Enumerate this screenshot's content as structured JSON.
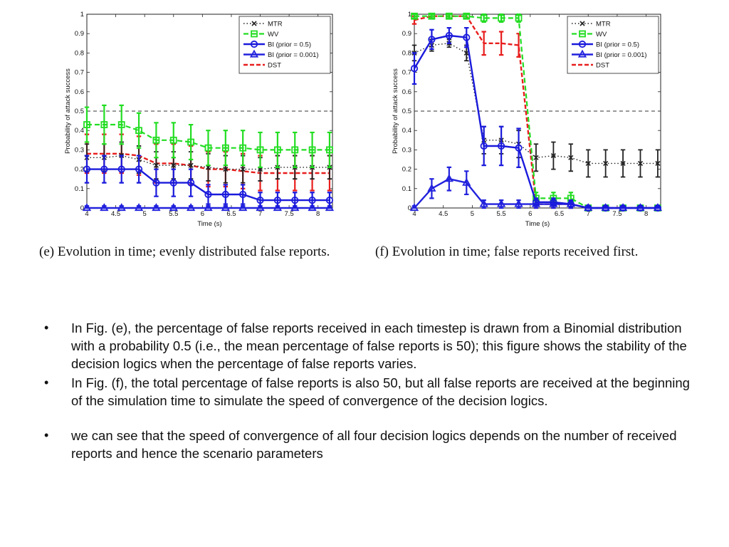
{
  "colors": {
    "MTR": "#222222",
    "WV": "#22dd22",
    "BI05": "#1a1adc",
    "BI0001": "#2222dd",
    "DST": "#e81e1e",
    "threshold": "#333333"
  },
  "captions": {
    "e": "(e) Evolution in time; evenly distributed false reports.",
    "f": "(f) Evolution in time; false reports received first."
  },
  "bullets": [
    "In Fig. (e), the percentage of false reports received in each timestep is drawn from a Binomial distribution with a probability 0.5 (i.e., the mean percentage of false reports is 50); this figure shows the stability of the decision logics when the percentage of false reports varies.",
    "In Fig. (f), the total percentage of false reports is also 50, but all false reports are received at the beginning of the simulation time to simulate the speed of convergence of the decision logics.",
    "we can see that the speed of convergence of all four decision logics depends on the number of received reports and hence the scenario parameters"
  ],
  "chart_data": [
    {
      "type": "line",
      "xlabel": "Time (s)",
      "ylabel": "Probability of attack success",
      "xlim": [
        4,
        8.25
      ],
      "ylim": [
        0,
        1
      ],
      "xticks": [
        "4",
        "4.5",
        "5",
        "5.5",
        "6",
        "6.5",
        "7",
        "7.5",
        "8"
      ],
      "yticks": [
        "0",
        "0.1",
        "0.2",
        "0.3",
        "0.4",
        "0.5",
        "0.6",
        "0.7",
        "0.8",
        "0.9",
        "1"
      ],
      "threshold": 0.5,
      "legend_position": "top-right",
      "legend": [
        "MTR",
        "WV",
        "BI (prior = 0.5)",
        "BI (prior = 0.001)",
        "DST"
      ],
      "x": [
        4,
        4.3,
        4.6,
        4.9,
        5.2,
        5.5,
        5.8,
        6.1,
        6.4,
        6.7,
        7,
        7.3,
        7.6,
        7.9,
        8.2
      ],
      "series": [
        {
          "name": "MTR",
          "values": [
            0.26,
            0.26,
            0.27,
            0.25,
            0.22,
            0.22,
            0.22,
            0.21,
            0.2,
            0.2,
            0.2,
            0.21,
            0.21,
            0.21,
            0.21
          ],
          "err": [
            0.07,
            0.07,
            0.07,
            0.07,
            0.07,
            0.07,
            0.07,
            0.07,
            0.07,
            0.07,
            0.06,
            0.06,
            0.06,
            0.06,
            0.06
          ],
          "err_every": 1
        },
        {
          "name": "WV",
          "values": [
            0.43,
            0.43,
            0.43,
            0.4,
            0.35,
            0.35,
            0.34,
            0.31,
            0.31,
            0.31,
            0.3,
            0.3,
            0.3,
            0.3,
            0.3
          ],
          "err": [
            0.09,
            0.1,
            0.1,
            0.09,
            0.09,
            0.09,
            0.09,
            0.09,
            0.09,
            0.09,
            0.09,
            0.09,
            0.09,
            0.09,
            0.09
          ],
          "err_every": 1
        },
        {
          "name": "BI (prior = 0.5)",
          "values": [
            0.2,
            0.2,
            0.2,
            0.2,
            0.13,
            0.13,
            0.13,
            0.07,
            0.07,
            0.07,
            0.04,
            0.04,
            0.04,
            0.04,
            0.04
          ],
          "err": [
            0.07,
            0.07,
            0.07,
            0.07,
            0.07,
            0.07,
            0.07,
            0.05,
            0.05,
            0.05,
            0.04,
            0.04,
            0.04,
            0.04,
            0.04
          ],
          "err_every": 1
        },
        {
          "name": "BI (prior = 0.001)",
          "values": [
            0.0,
            0.0,
            0.0,
            0.0,
            0.0,
            0.0,
            0.0,
            0.0,
            0.0,
            0.0,
            0.0,
            0.0,
            0.0,
            0.0,
            0.0
          ],
          "err": [
            0.01,
            0.01,
            0.01,
            0.01,
            0.01,
            0.01,
            0.01,
            0.01,
            0.01,
            0.01,
            0.01,
            0.01,
            0.01,
            0.01,
            0.01
          ],
          "err_every": 1
        },
        {
          "name": "DST",
          "values": [
            0.28,
            0.28,
            0.28,
            0.27,
            0.23,
            0.23,
            0.22,
            0.2,
            0.2,
            0.19,
            0.18,
            0.18,
            0.18,
            0.18,
            0.18
          ],
          "err": [
            0.1,
            0.1,
            0.1,
            0.1,
            0.1,
            0.1,
            0.1,
            0.09,
            0.09,
            0.09,
            0.09,
            0.09,
            0.09,
            0.09,
            0.09
          ],
          "err_every": 1
        }
      ]
    },
    {
      "type": "line",
      "xlabel": "Time (s)",
      "ylabel": "Probability of attack success",
      "xlim": [
        4,
        8.25
      ],
      "ylim": [
        0,
        1
      ],
      "xticks": [
        "4",
        "4.5",
        "5",
        "5.5",
        "6",
        "6.5",
        "7",
        "7.5",
        "8"
      ],
      "yticks": [
        "0",
        "0.1",
        "0.2",
        "0.3",
        "0.4",
        "0.5",
        "0.6",
        "0.7",
        "0.8",
        "0.9",
        "1"
      ],
      "threshold": 0.5,
      "legend_position": "top-right",
      "legend": [
        "MTR",
        "WV",
        "BI (prior = 0.5)",
        "BI (prior = 0.001)",
        "DST"
      ],
      "x": [
        4,
        4.3,
        4.6,
        4.9,
        5.2,
        5.5,
        5.8,
        6.1,
        6.4,
        6.7,
        7,
        7.3,
        7.6,
        7.9,
        8.2
      ],
      "series": [
        {
          "name": "MTR",
          "values": [
            0.8,
            0.84,
            0.85,
            0.8,
            0.35,
            0.35,
            0.33,
            0.26,
            0.27,
            0.26,
            0.23,
            0.23,
            0.23,
            0.23,
            0.23
          ],
          "err": [
            0.04,
            0.03,
            0.02,
            0.04,
            0.07,
            0.07,
            0.07,
            0.07,
            0.07,
            0.07,
            0.07,
            0.07,
            0.07,
            0.07,
            0.07
          ],
          "err_every": 1
        },
        {
          "name": "WV",
          "values": [
            0.99,
            0.99,
            0.99,
            0.99,
            0.98,
            0.98,
            0.98,
            0.05,
            0.05,
            0.05,
            0.0,
            0.0,
            0.0,
            0.0,
            0.0
          ],
          "err": [
            0.01,
            0.01,
            0.01,
            0.01,
            0.02,
            0.02,
            0.02,
            0.03,
            0.03,
            0.03,
            0.01,
            0.01,
            0.01,
            0.01,
            0.01
          ],
          "err_every": 1
        },
        {
          "name": "BI (prior = 0.5)",
          "values": [
            0.72,
            0.87,
            0.89,
            0.88,
            0.32,
            0.32,
            0.31,
            0.03,
            0.03,
            0.02,
            0.0,
            0.0,
            0.0,
            0.0,
            0.0
          ],
          "err": [
            0.08,
            0.05,
            0.04,
            0.05,
            0.1,
            0.1,
            0.1,
            0.02,
            0.02,
            0.02,
            0.01,
            0.01,
            0.01,
            0.01,
            0.01
          ],
          "err_every": 1
        },
        {
          "name": "BI (prior = 0.001)",
          "values": [
            0.0,
            0.1,
            0.15,
            0.13,
            0.02,
            0.02,
            0.02,
            0.02,
            0.02,
            0.02,
            0.0,
            0.0,
            0.0,
            0.0,
            0.0
          ],
          "err": [
            0.01,
            0.05,
            0.06,
            0.06,
            0.02,
            0.02,
            0.02,
            0.02,
            0.02,
            0.02,
            0.01,
            0.01,
            0.01,
            0.01,
            0.01
          ],
          "err_every": 1
        },
        {
          "name": "DST",
          "values": [
            0.97,
            0.99,
            0.99,
            0.99,
            0.85,
            0.85,
            0.84,
            0.02,
            0.02,
            0.02,
            0.0,
            0.0,
            0.0,
            0.0,
            0.0
          ],
          "err": [
            0.02,
            0.01,
            0.01,
            0.01,
            0.06,
            0.06,
            0.06,
            0.02,
            0.02,
            0.02,
            0.01,
            0.01,
            0.01,
            0.01,
            0.01
          ],
          "err_every": 1
        }
      ]
    }
  ]
}
